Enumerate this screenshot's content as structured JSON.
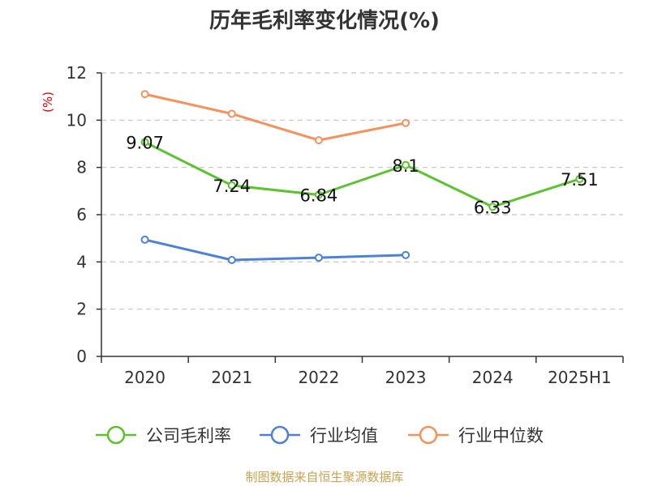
{
  "chart_data": {
    "type": "line",
    "title": "历年毛利率变化情况(%)",
    "ylabel": "(%)",
    "categories": [
      "2020",
      "2021",
      "2022",
      "2023",
      "2024",
      "2025H1"
    ],
    "ylim": [
      0,
      12
    ],
    "yticks": [
      0,
      2,
      4,
      6,
      8,
      10,
      12
    ],
    "grid": true,
    "legend_position": "bottom",
    "series": [
      {
        "name": "公司毛利率",
        "color": "#5dc22f",
        "values": [
          9.07,
          7.24,
          6.84,
          8.1,
          6.33,
          7.51
        ],
        "labels": [
          "9.07",
          "7.24",
          "6.84",
          "8.1",
          "6.33",
          "7.51"
        ]
      },
      {
        "name": "行业均值",
        "color": "#4f80d9",
        "values": [
          4.94,
          4.08,
          4.18,
          4.29,
          null,
          null
        ]
      },
      {
        "name": "行业中位数",
        "color": "#f7915b",
        "values": [
          11.1,
          10.27,
          9.15,
          9.88,
          null,
          null
        ]
      }
    ],
    "source": "制图数据来自恒生聚源数据库"
  }
}
